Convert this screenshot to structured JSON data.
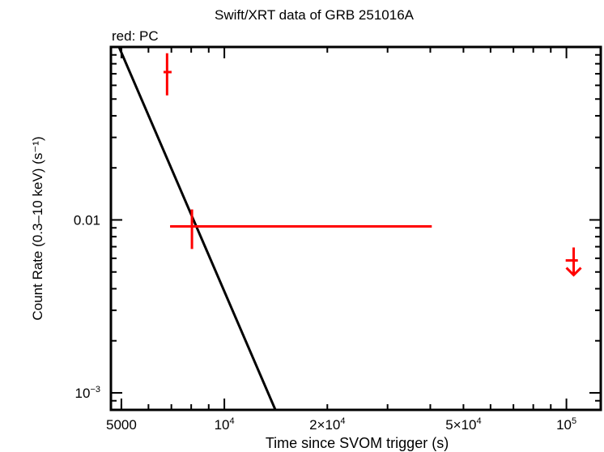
{
  "chart_data": {
    "type": "scatter",
    "title": "Swift/XRT data of GRB 251016A",
    "legend_note": "red: PC",
    "xlabel": "Time since SVOM trigger (s)",
    "ylabel": "Count Rate (0.3–10 keV) (s⁻¹)",
    "xscale": "log",
    "yscale": "log",
    "xlim": [
      4660,
      126000
    ],
    "ylim": [
      0.000797,
      0.1
    ],
    "x_ticks": [
      {
        "value": 5000,
        "label": "5000"
      },
      {
        "value": 10000,
        "label": "10",
        "sup": "4"
      },
      {
        "value": 20000,
        "label": "2×10",
        "sup": "4"
      },
      {
        "value": 50000,
        "label": "5×10",
        "sup": "4"
      },
      {
        "value": 100000,
        "label": "10",
        "sup": "5"
      }
    ],
    "y_ticks": [
      {
        "value": 0.01,
        "label": "0.01"
      },
      {
        "value": 0.001,
        "label": "10",
        "sup": "−3"
      }
    ],
    "grid": false,
    "series": [
      {
        "name": "PC",
        "color": "#ff0000",
        "points": [
          {
            "x": 6800,
            "x_lo": 6640,
            "x_hi": 7010,
            "y": 0.0716,
            "y_lo": 0.0525,
            "y_hi": 0.092
          },
          {
            "x": 8040,
            "x_lo": 6940,
            "x_hi": 40400,
            "y": 0.00917,
            "y_lo": 0.00679,
            "y_hi": 0.0115
          }
        ],
        "upper_limits": [
          {
            "x": 105000,
            "x_lo": 99500,
            "x_hi": 108000,
            "y": 0.00583
          }
        ]
      }
    ],
    "model": {
      "name": "power-law decay fit",
      "color": "#000000",
      "points": [
        {
          "x": 4920,
          "y": 0.1
        },
        {
          "x": 14100,
          "y": 0.000797
        }
      ],
      "slope": -4.59
    }
  }
}
